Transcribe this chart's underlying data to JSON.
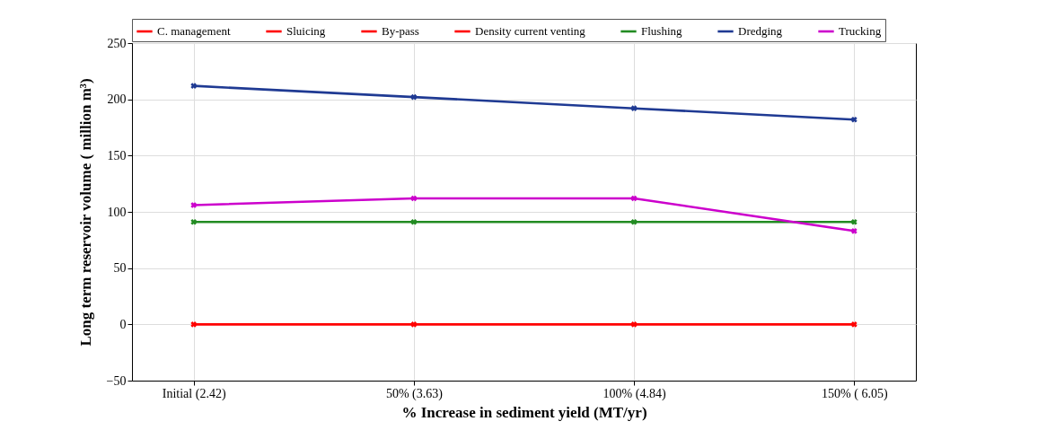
{
  "chart_data": {
    "type": "line",
    "xlabel": "% Increase in sediment yield (MT/yr)",
    "ylabel": "Long term reservoir volume ( million m³)",
    "categories": [
      "Initial (2.42)",
      "50% (3.63)",
      "100% (4.84)",
      "150% ( 6.05)"
    ],
    "series": [
      {
        "name": "C. management",
        "color": "#ff0000",
        "values": [
          0,
          0,
          0,
          0
        ]
      },
      {
        "name": "Sluicing",
        "color": "#ff0000",
        "values": [
          null,
          null,
          null,
          null
        ]
      },
      {
        "name": "By-pass",
        "color": "#ff0000",
        "values": [
          null,
          null,
          null,
          null
        ]
      },
      {
        "name": "Density current venting",
        "color": "#ff0000",
        "values": [
          null,
          null,
          null,
          null
        ]
      },
      {
        "name": "Flushing",
        "color": "#228b22",
        "values": [
          91,
          91,
          91,
          91
        ]
      },
      {
        "name": "Dredging",
        "color": "#1f3a93",
        "values": [
          212,
          202,
          192,
          182
        ]
      },
      {
        "name": "Trucking",
        "color": "#cc00cc",
        "values": [
          106,
          112,
          112,
          83
        ]
      }
    ],
    "ylim": [
      -50,
      250
    ],
    "yticks": [
      -50,
      0,
      50,
      100,
      150,
      200,
      250
    ],
    "grid": true,
    "legend": "top",
    "marker": "cross"
  }
}
